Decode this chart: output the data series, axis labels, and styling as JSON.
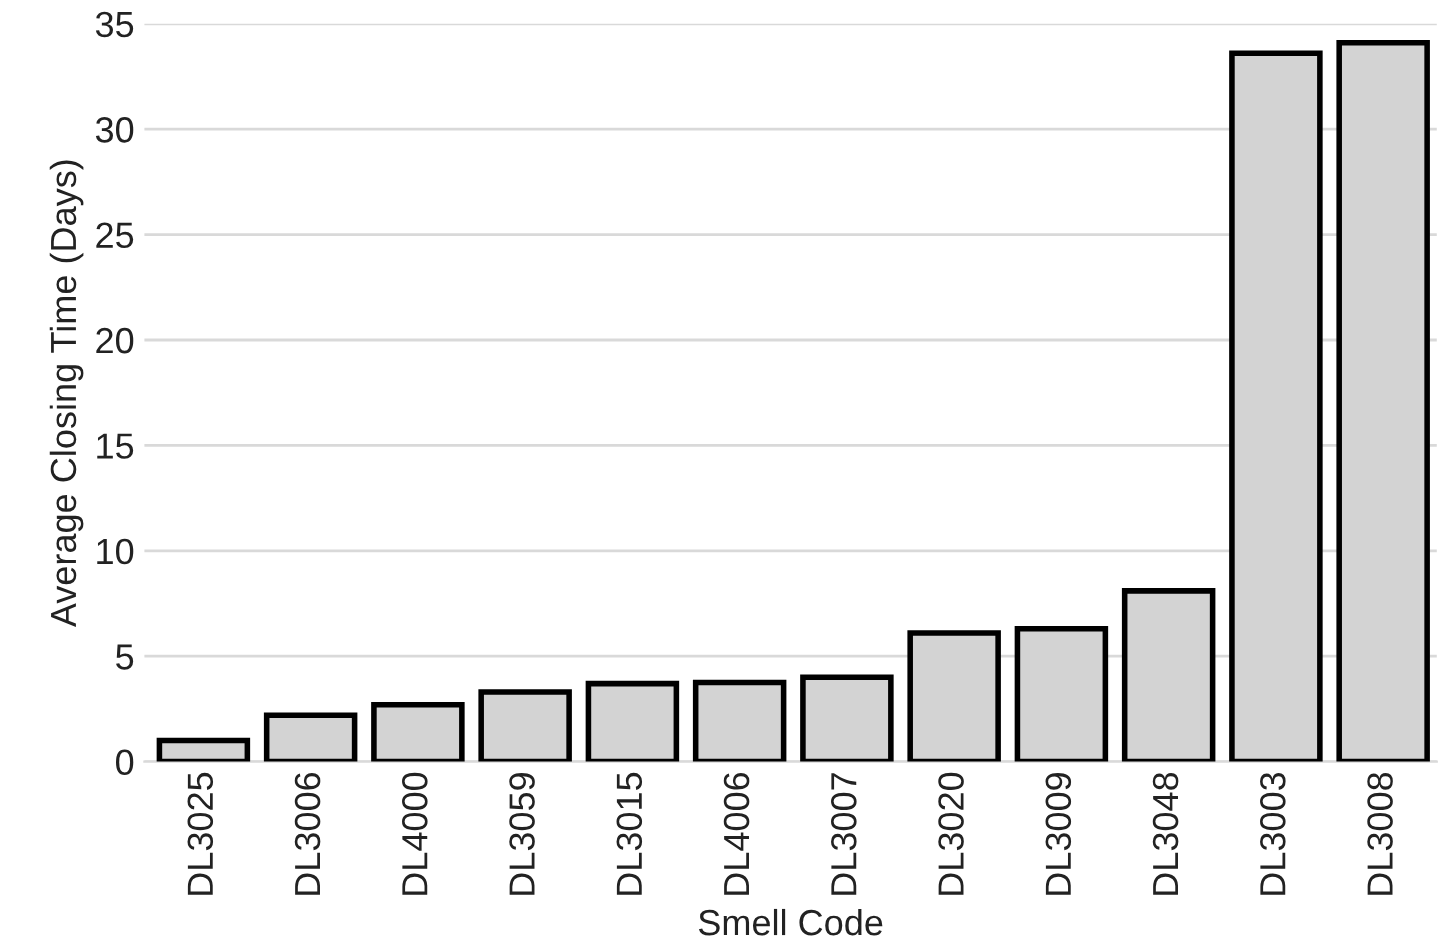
{
  "chart_data": {
    "type": "bar",
    "xlabel": "Smell Code",
    "ylabel": "Average Closing Time (Days)",
    "categories": [
      "DL3025",
      "DL3006",
      "DL4000",
      "DL3059",
      "DL3015",
      "DL4006",
      "DL3007",
      "DL3020",
      "DL3009",
      "DL3048",
      "DL3003",
      "DL3008"
    ],
    "values": [
      1.0,
      2.2,
      2.7,
      3.3,
      3.7,
      3.75,
      4.0,
      6.1,
      6.3,
      8.1,
      33.6,
      34.1
    ],
    "color": "#d3d3d3",
    "ylim": [
      0,
      35
    ],
    "yticks": [
      0,
      5,
      10,
      15,
      20,
      25,
      30,
      35
    ],
    "grid": "y"
  }
}
